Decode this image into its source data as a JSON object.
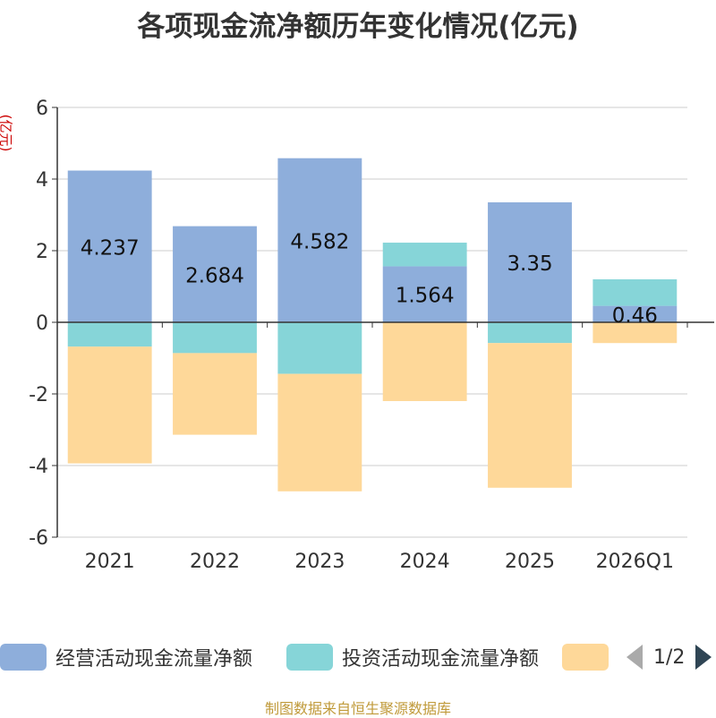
{
  "chart_data": {
    "type": "bar",
    "stacked": true,
    "title": "各项现金流净额历年变化情况(亿元)",
    "ylabel": "(亿元)",
    "ylim": [
      -6,
      6
    ],
    "yticks": [
      6,
      4,
      2,
      0,
      -2,
      -4,
      -6
    ],
    "grid": true,
    "categories": [
      "2021",
      "2022",
      "2023",
      "2024",
      "2025",
      "2026Q1"
    ],
    "series": [
      {
        "name": "经营活动现金流量净额",
        "color": "#8eaedb",
        "values": [
          4.237,
          2.684,
          4.582,
          1.564,
          3.35,
          0.46
        ],
        "labels": [
          "4.237",
          "2.684",
          "4.582",
          "1.564",
          "3.35",
          "0.46"
        ]
      },
      {
        "name": "投资活动现金流量净额",
        "color": "#86d5d8",
        "values": [
          -0.68,
          -0.86,
          -1.44,
          0.66,
          -0.58,
          0.74
        ]
      },
      {
        "name": "",
        "color": "#fed899",
        "values": [
          -3.26,
          -2.28,
          -3.28,
          -2.2,
          -4.04,
          -0.58
        ]
      }
    ],
    "legend_placement": "bottom"
  },
  "legend": {
    "pager_text": "1/2"
  },
  "source_note": "制图数据来自恒生聚源数据库"
}
